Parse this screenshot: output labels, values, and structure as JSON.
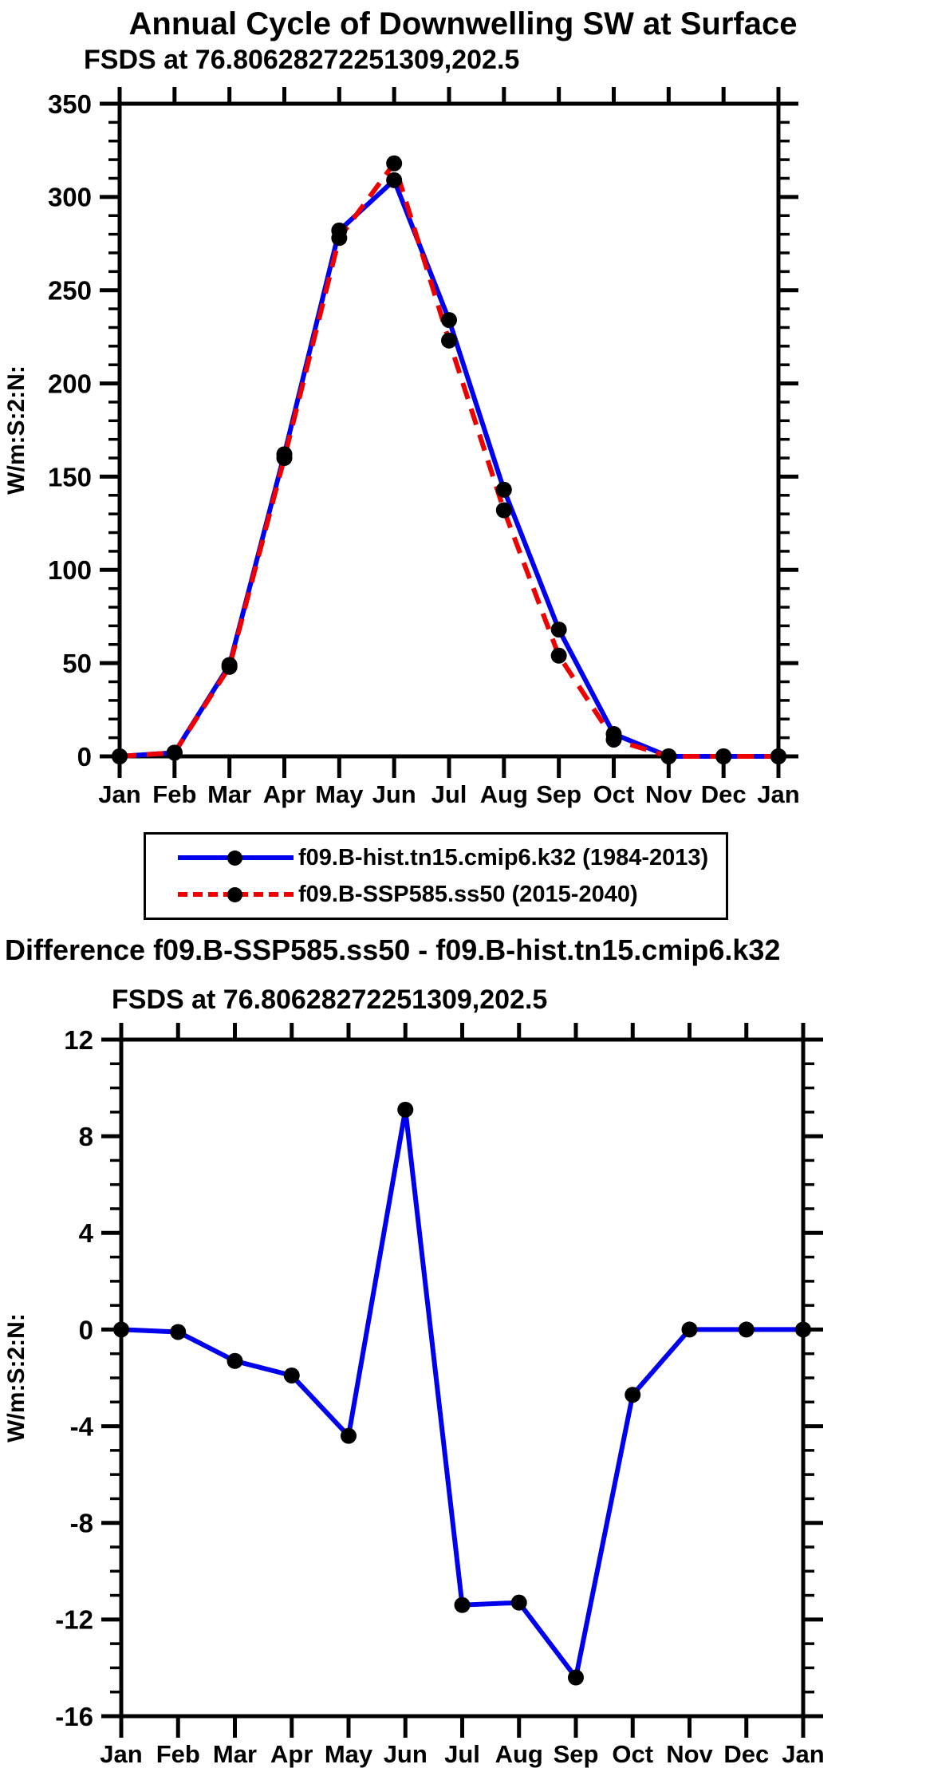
{
  "page": {
    "background": "#ffffff",
    "axis_color": "#000000"
  },
  "chart_data": [
    {
      "type": "line",
      "title": "Annual Cycle of Downwelling SW at Surface",
      "subtitle": "FSDS at 76.80628272251309,202.5",
      "ylabel": "W/m:S:2:N:",
      "xlabel": "",
      "categories": [
        "Jan",
        "Feb",
        "Mar",
        "Apr",
        "May",
        "Jun",
        "Jul",
        "Aug",
        "Sep",
        "Oct",
        "Nov",
        "Dec",
        "Jan"
      ],
      "series": [
        {
          "name": "f09.B-hist.tn15.cmip6.k32 (1984-2013)",
          "color": "#0000ee",
          "line_style": "solid",
          "marker": "black-dot",
          "values": [
            0,
            2,
            49,
            162,
            282,
            309,
            234,
            143,
            68,
            12,
            0,
            0,
            0
          ]
        },
        {
          "name": "f09.B-SSP585.ss50 (2015-2040)",
          "color": "#ee0000",
          "line_style": "dashed",
          "marker": "black-dot",
          "values": [
            0,
            2,
            48,
            160,
            278,
            318,
            223,
            132,
            54,
            9,
            0,
            0,
            0
          ]
        }
      ],
      "ylim": [
        0,
        350
      ],
      "ytick_step": 50,
      "yminor_step": 10,
      "grid": false,
      "legend_position": "below"
    },
    {
      "type": "line",
      "title": "Difference f09.B-SSP585.ss50 - f09.B-hist.tn15.cmip6.k32",
      "subtitle": "FSDS at 76.80628272251309,202.5",
      "ylabel": "W/m:S:2:N:",
      "xlabel": "",
      "categories": [
        "Jan",
        "Feb",
        "Mar",
        "Apr",
        "May",
        "Jun",
        "Jul",
        "Aug",
        "Sep",
        "Oct",
        "Nov",
        "Dec",
        "Jan"
      ],
      "series": [
        {
          "name": "difference",
          "color": "#0000ee",
          "line_style": "solid",
          "marker": "black-dot",
          "values": [
            0.0,
            -0.1,
            -1.3,
            -1.9,
            -4.4,
            9.1,
            -11.4,
            -11.3,
            -14.4,
            -2.7,
            0.0,
            0.0,
            0.0
          ]
        }
      ],
      "ylim": [
        -16,
        12
      ],
      "ytick_step": 4,
      "yminor_step": 1,
      "grid": false,
      "legend_position": "none"
    }
  ],
  "marker_color": "#000000"
}
